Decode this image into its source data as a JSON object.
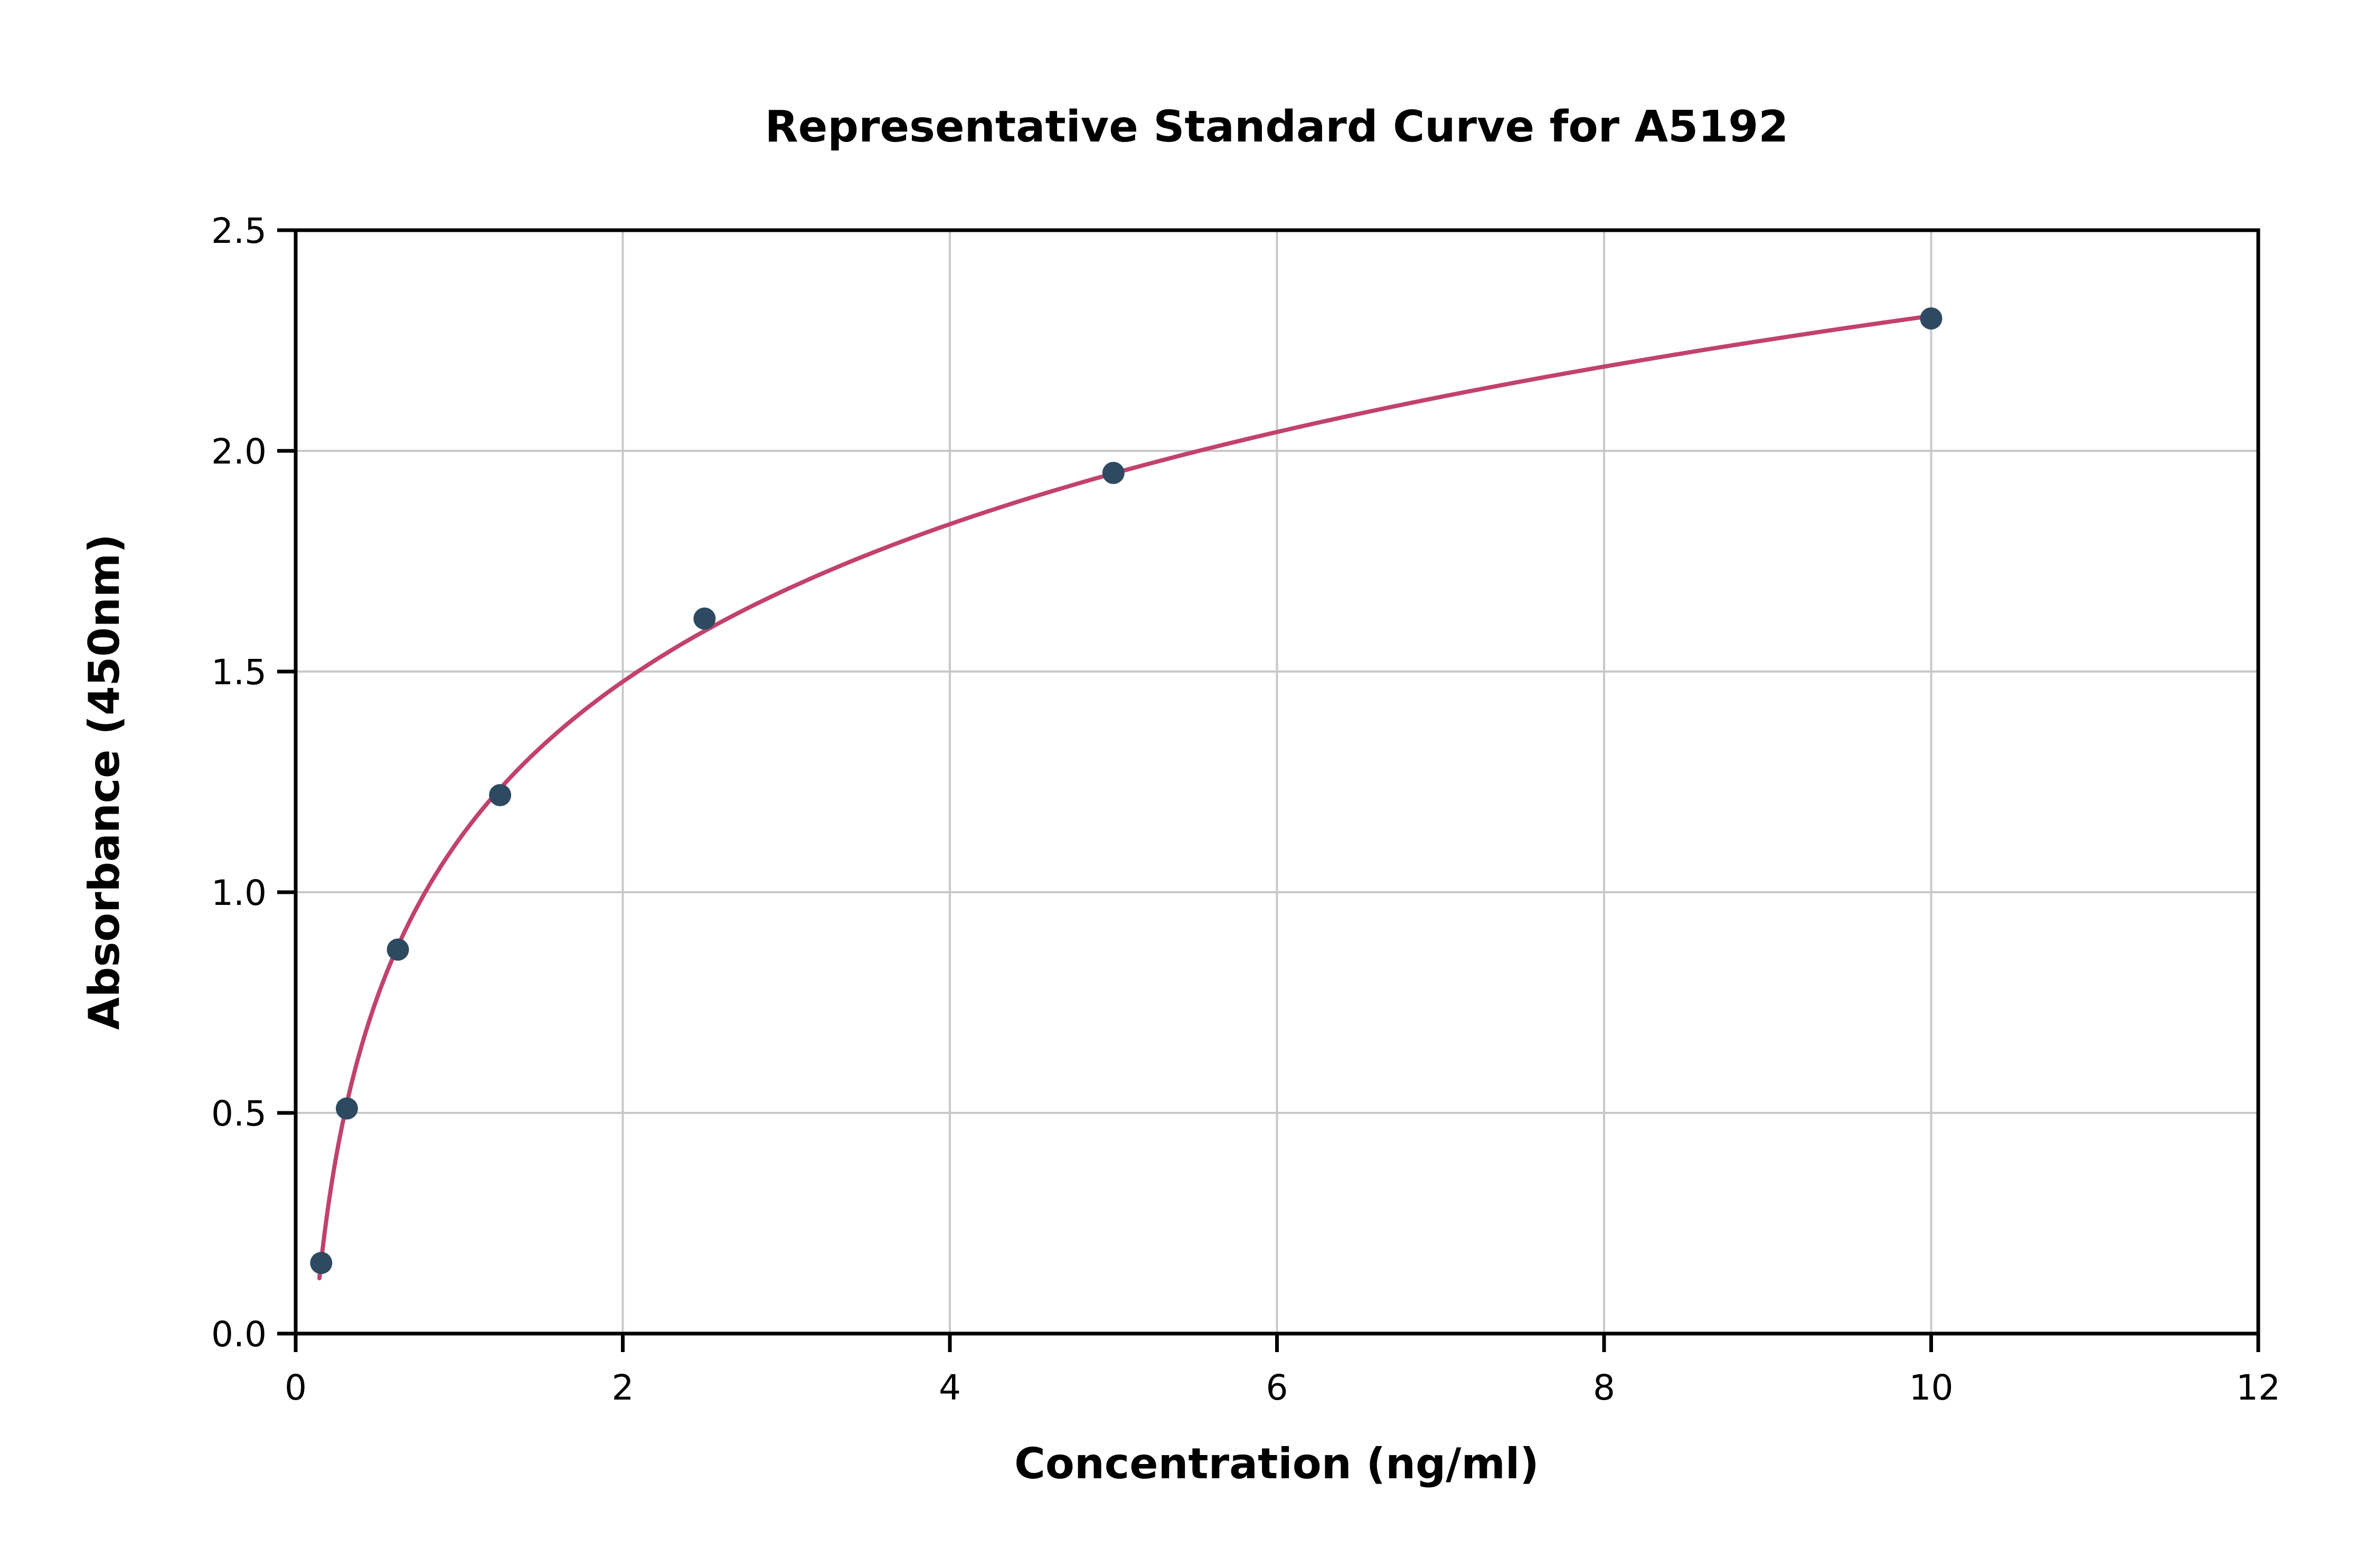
{
  "chart_data": {
    "type": "scatter",
    "title": "Representative Standard Curve for A5192",
    "xlabel": "Concentration (ng/ml)",
    "ylabel": "Absorbance (450nm)",
    "xlim": [
      0,
      12
    ],
    "ylim": [
      0,
      2.5
    ],
    "x_ticks": [
      0,
      2,
      4,
      6,
      8,
      10,
      12
    ],
    "x_tick_labels": [
      "0",
      "2",
      "4",
      "6",
      "8",
      "10",
      "12"
    ],
    "y_ticks": [
      0,
      0.5,
      1.0,
      1.5,
      2.0,
      2.5
    ],
    "y_tick_labels": [
      "0.0",
      "0.5",
      "1.0",
      "1.5",
      "2.0",
      "2.5"
    ],
    "grid": true,
    "legend": "none",
    "points": [
      {
        "x": 0.156,
        "y": 0.16
      },
      {
        "x": 0.313,
        "y": 0.51
      },
      {
        "x": 0.625,
        "y": 0.87
      },
      {
        "x": 1.25,
        "y": 1.22
      },
      {
        "x": 2.5,
        "y": 1.62
      },
      {
        "x": 5,
        "y": 1.95
      },
      {
        "x": 10,
        "y": 2.3
      }
    ],
    "fit_curve": {
      "type": "logarithmic",
      "formula": "y = a*ln(x) + b",
      "a": 0.515,
      "b": 1.12,
      "x_start": 0.145,
      "x_end": 10
    },
    "colors": {
      "curve": "#c2426c",
      "points": "#2e4a62",
      "grid": "#c8c8c8",
      "axis": "#000000",
      "background": "#ffffff"
    }
  }
}
